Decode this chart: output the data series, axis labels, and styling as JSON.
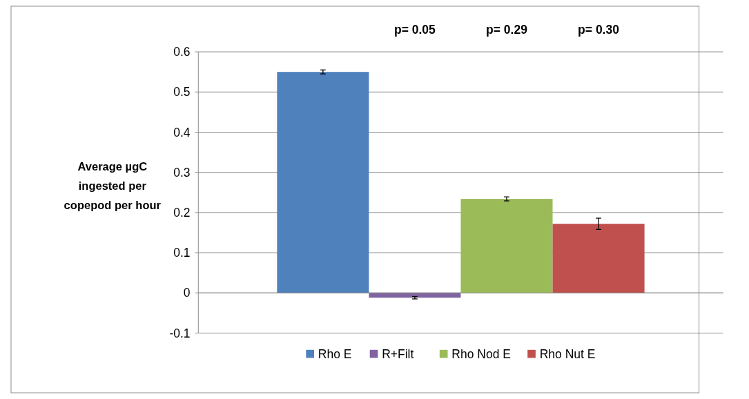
{
  "chart_data": {
    "type": "bar",
    "categories": [
      null
    ],
    "ylabel": "Average µgC ingested per copepod per hour",
    "series": [
      {
        "name": "Rho E",
        "color": "#4f81bd",
        "values": [
          0.55
        ],
        "errors": [
          0.005
        ]
      },
      {
        "name": "R+Filt",
        "color": "#8064a2",
        "values": [
          -0.012
        ],
        "errors": [
          0.003
        ]
      },
      {
        "name": "Rho Nod E",
        "color": "#9bbb59",
        "values": [
          0.234
        ],
        "errors": [
          0.005
        ]
      },
      {
        "name": "Rho Nut E",
        "color": "#c0504d",
        "values": [
          0.172
        ],
        "errors": [
          0.014
        ]
      }
    ],
    "annotations": [
      "p= 0.05",
      "p= 0.29",
      "p= 0.30"
    ],
    "ylim": [
      -0.1,
      0.6
    ],
    "yticks": [
      -0.1,
      0,
      0.1,
      0.2,
      0.3,
      0.4,
      0.5,
      0.6
    ],
    "grid": "y",
    "legend": "bottom"
  }
}
